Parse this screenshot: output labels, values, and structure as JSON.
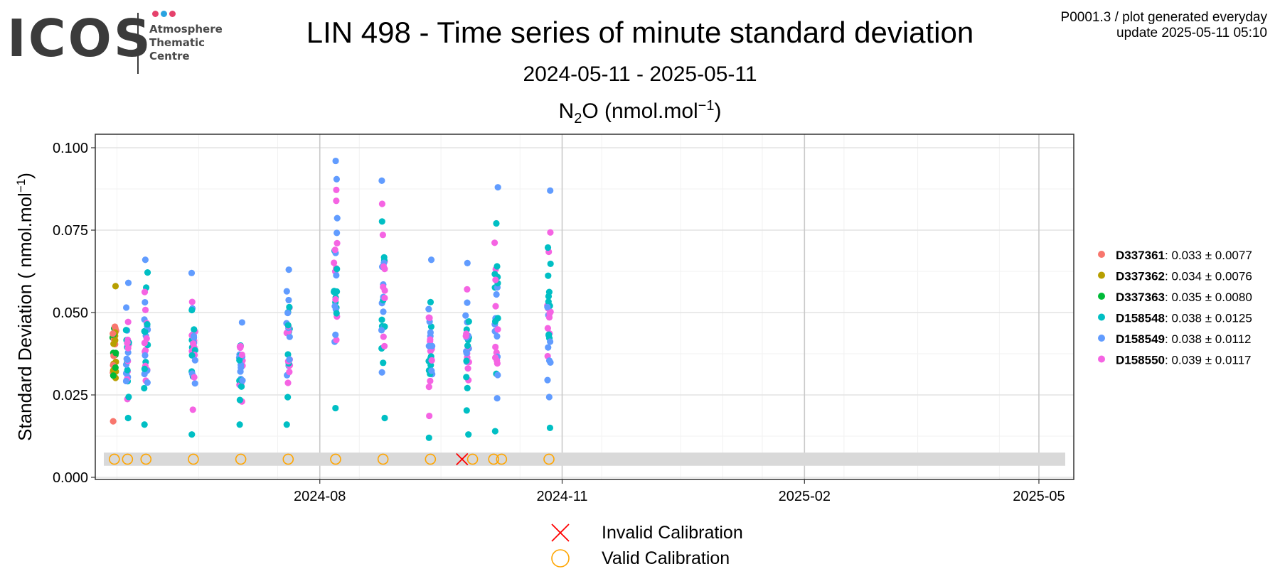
{
  "logo": {
    "word": "ICOS",
    "line1": "Atmosphere",
    "line2": "Thematic",
    "line3": "Centre",
    "dot_colors": [
      "#e5416b",
      "#2aa3e0",
      "#e5416b"
    ]
  },
  "header": {
    "title": "LIN 498 - Time series of minute standard deviation",
    "subtitle": "2024-05-11 - 2025-05-11",
    "gas_prefix": "N",
    "gas_sub": "2",
    "gas_mid": "O (nmol.mol",
    "gas_sup": "−1",
    "gas_end": ")",
    "meta_line1": "P0001.3 / plot generated everyday",
    "meta_line2": "update  2025-05-11 05:10"
  },
  "chart_data": {
    "type": "scatter",
    "title": "LIN 498 - Time series of minute standard deviation",
    "ylabel_main": "Standard Deviation ( nmol.mol",
    "ylabel_sup": "−1",
    "ylabel_end": ")",
    "xlim": [
      "2024-05-11",
      "2025-05-11"
    ],
    "ylim": [
      0,
      0.1
    ],
    "yticks": [
      0.0,
      0.025,
      0.05,
      0.075,
      0.1
    ],
    "ytick_labels": [
      "0.000",
      "0.025",
      "0.050",
      "0.075",
      "0.100"
    ],
    "xticks": [
      "2024-08-01",
      "2024-11-01",
      "2025-02-01",
      "2025-05-01"
    ],
    "xtick_labels": [
      "2024-08",
      "2024-11",
      "2025-02",
      "2025-05"
    ],
    "grid": true,
    "legend_position": "right",
    "series": [
      {
        "name": "D337361",
        "mean": "0.033",
        "sd": "0.0077",
        "color": "#f8766d"
      },
      {
        "name": "D337362",
        "mean": "0.034",
        "sd": "0.0076",
        "color": "#b79f00"
      },
      {
        "name": "D337363",
        "mean": "0.035",
        "sd": "0.0080",
        "color": "#00ba38"
      },
      {
        "name": "D158548",
        "mean": "0.038",
        "sd": "0.0125",
        "color": "#00bfc4"
      },
      {
        "name": "D158549",
        "mean": "0.038",
        "sd": "0.0112",
        "color": "#619cff"
      },
      {
        "name": "D158550",
        "mean": "0.039",
        "sd": "0.0117",
        "color": "#f564e3"
      }
    ],
    "sessions": [
      {
        "date": "2024-05-15",
        "series": [
          0,
          1,
          2
        ],
        "min": 0.017,
        "max": 0.058
      },
      {
        "date": "2024-05-20",
        "series": [
          3,
          4,
          5
        ],
        "min": 0.018,
        "max": 0.059
      },
      {
        "date": "2024-05-27",
        "series": [
          3,
          4,
          5
        ],
        "min": 0.016,
        "max": 0.066
      },
      {
        "date": "2024-06-14",
        "series": [
          3,
          4,
          5
        ],
        "min": 0.013,
        "max": 0.062
      },
      {
        "date": "2024-07-02",
        "series": [
          3,
          4,
          5
        ],
        "min": 0.016,
        "max": 0.047
      },
      {
        "date": "2024-07-20",
        "series": [
          3,
          4,
          5
        ],
        "min": 0.016,
        "max": 0.063
      },
      {
        "date": "2024-08-07",
        "series": [
          3,
          4,
          5
        ],
        "min": 0.021,
        "max": 0.096
      },
      {
        "date": "2024-08-25",
        "series": [
          3,
          4,
          5
        ],
        "min": 0.018,
        "max": 0.09
      },
      {
        "date": "2024-09-12",
        "series": [
          3,
          4,
          5
        ],
        "min": 0.012,
        "max": 0.066
      },
      {
        "date": "2024-09-26",
        "series": [
          3,
          4,
          5
        ],
        "min": 0.013,
        "max": 0.065
      },
      {
        "date": "2024-10-07",
        "series": [
          3,
          4,
          5
        ],
        "min": 0.014,
        "max": 0.088
      },
      {
        "date": "2024-10-27",
        "series": [
          3,
          4,
          5
        ],
        "min": 0.015,
        "max": 0.087
      }
    ],
    "calibration_band": [
      0.0035,
      0.0075
    ],
    "calibration_y": 0.0055,
    "calibrations": [
      {
        "date": "2024-05-15",
        "status": "valid"
      },
      {
        "date": "2024-05-20",
        "status": "valid"
      },
      {
        "date": "2024-05-27",
        "status": "valid"
      },
      {
        "date": "2024-06-14",
        "status": "valid"
      },
      {
        "date": "2024-07-02",
        "status": "valid"
      },
      {
        "date": "2024-07-20",
        "status": "valid"
      },
      {
        "date": "2024-08-07",
        "status": "valid"
      },
      {
        "date": "2024-08-25",
        "status": "valid"
      },
      {
        "date": "2024-09-12",
        "status": "valid"
      },
      {
        "date": "2024-09-24",
        "status": "invalid"
      },
      {
        "date": "2024-09-28",
        "status": "valid"
      },
      {
        "date": "2024-10-06",
        "status": "valid"
      },
      {
        "date": "2024-10-09",
        "status": "valid"
      },
      {
        "date": "2024-10-27",
        "status": "valid"
      }
    ],
    "calibration_legend": [
      {
        "label": "Invalid Calibration",
        "color": "#ff0000"
      },
      {
        "label": "Valid Calibration",
        "color": "#ffa500"
      }
    ]
  }
}
